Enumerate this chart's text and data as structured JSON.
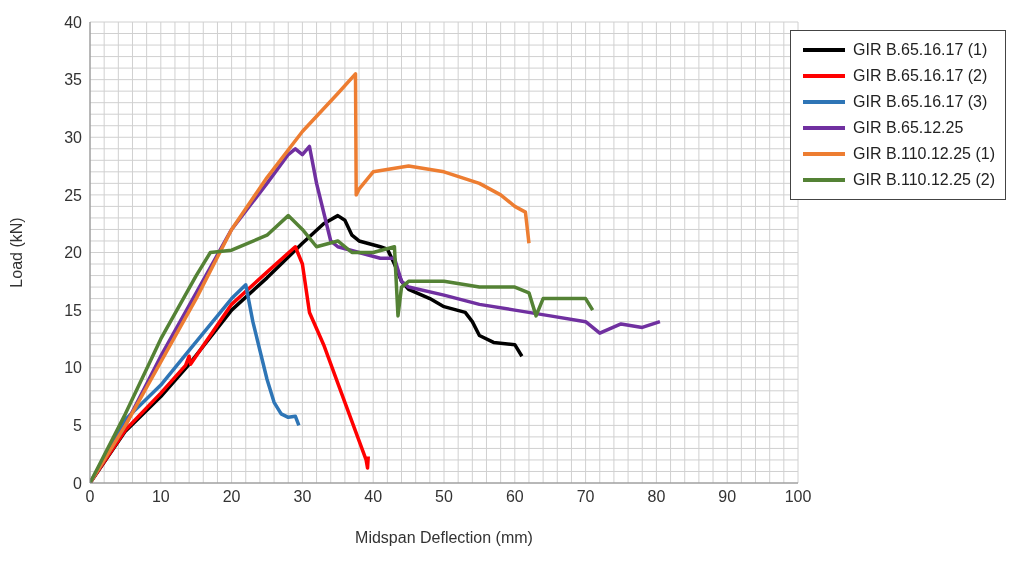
{
  "chart_data": {
    "type": "line",
    "xlabel": "Midspan Deflection (mm)",
    "ylabel": "Load (kN)",
    "xlim": [
      0,
      100
    ],
    "xticks": [
      0,
      10,
      20,
      30,
      40,
      50,
      60,
      70,
      80,
      90,
      100
    ],
    "ylim": [
      0,
      40
    ],
    "yticks": [
      0,
      5,
      10,
      15,
      20,
      25,
      30,
      35,
      40
    ],
    "grid": true,
    "legend": "top right",
    "marker": "none",
    "line_style": "solid",
    "series": [
      {
        "name": "GIR B.65.16.17 (1)",
        "color": "#000000",
        "x": [
          0,
          5,
          10,
          14,
          20,
          25,
          30,
          33,
          35,
          36,
          37,
          38,
          41,
          42,
          43,
          44,
          45,
          48,
          50,
          53,
          54,
          55,
          57,
          60,
          61
        ],
        "values": [
          0,
          4.5,
          7.5,
          10.3,
          15,
          17.8,
          20.8,
          22.5,
          23.2,
          22.8,
          21.5,
          21,
          20.5,
          20.3,
          19,
          17.5,
          16.8,
          16,
          15.3,
          14.8,
          14,
          12.8,
          12.2,
          12,
          11
        ]
      },
      {
        "name": "GIR B.65.16.17 (2)",
        "color": "#ff0000",
        "x": [
          0,
          5,
          10,
          13.5,
          14,
          14.2,
          20,
          25,
          29,
          30,
          31,
          33,
          36,
          39,
          39.2,
          39.3
        ],
        "values": [
          0,
          4.6,
          7.8,
          10.2,
          11,
          10.3,
          15.5,
          18.3,
          20.5,
          19,
          14.8,
          12,
          7,
          2,
          1.3,
          2.3
        ]
      },
      {
        "name": "GIR B.65.16.17 (3)",
        "color": "#2e75b6",
        "x": [
          0,
          5,
          10,
          14,
          18,
          20,
          22,
          23,
          25,
          26,
          27,
          28,
          29,
          29.5
        ],
        "values": [
          0,
          5.5,
          8.5,
          11.5,
          14.5,
          16,
          17.2,
          14,
          9,
          7,
          6,
          5.7,
          5.8,
          5
        ]
      },
      {
        "name": "GIR B.65.12.25",
        "color": "#7030a0",
        "x": [
          0,
          5,
          10,
          15,
          20,
          25,
          28,
          29,
          30,
          31,
          32,
          34,
          35,
          38,
          41,
          43,
          44,
          45,
          50,
          55,
          60,
          65,
          70,
          72,
          75,
          78,
          80.5
        ],
        "values": [
          0,
          5,
          11,
          16.5,
          22,
          26,
          28.5,
          29,
          28.5,
          29.2,
          26,
          21,
          20.5,
          20,
          19.5,
          19.5,
          17.5,
          17,
          16.3,
          15.5,
          15,
          14.5,
          14,
          13,
          13.8,
          13.5,
          14
        ]
      },
      {
        "name": "GIR B.110.12.25 (1)",
        "color": "#ed7d31",
        "x": [
          0,
          5,
          10,
          15,
          20,
          25,
          30,
          35,
          37.5,
          37.6,
          38,
          40,
          45,
          50,
          55,
          58,
          60,
          61.5,
          62
        ],
        "values": [
          0,
          5,
          10.5,
          16,
          22,
          26.5,
          30.5,
          33.8,
          35.5,
          25,
          25.5,
          27,
          27.5,
          27,
          26,
          25,
          24,
          23.5,
          20.8
        ]
      },
      {
        "name": "GIR B.110.12.25 (2)",
        "color": "#548235",
        "x": [
          0,
          5,
          10,
          15,
          17,
          20,
          25,
          28,
          30,
          32,
          35,
          37,
          40,
          43,
          43.5,
          44,
          45,
          50,
          55,
          60,
          62,
          63,
          64,
          70,
          71
        ],
        "values": [
          0,
          6,
          12.5,
          18,
          20,
          20.2,
          21.5,
          23.2,
          22,
          20.5,
          21,
          20,
          20,
          20.5,
          14.5,
          17,
          17.5,
          17.5,
          17,
          17,
          16.5,
          14.5,
          16,
          16,
          15
        ]
      }
    ]
  }
}
